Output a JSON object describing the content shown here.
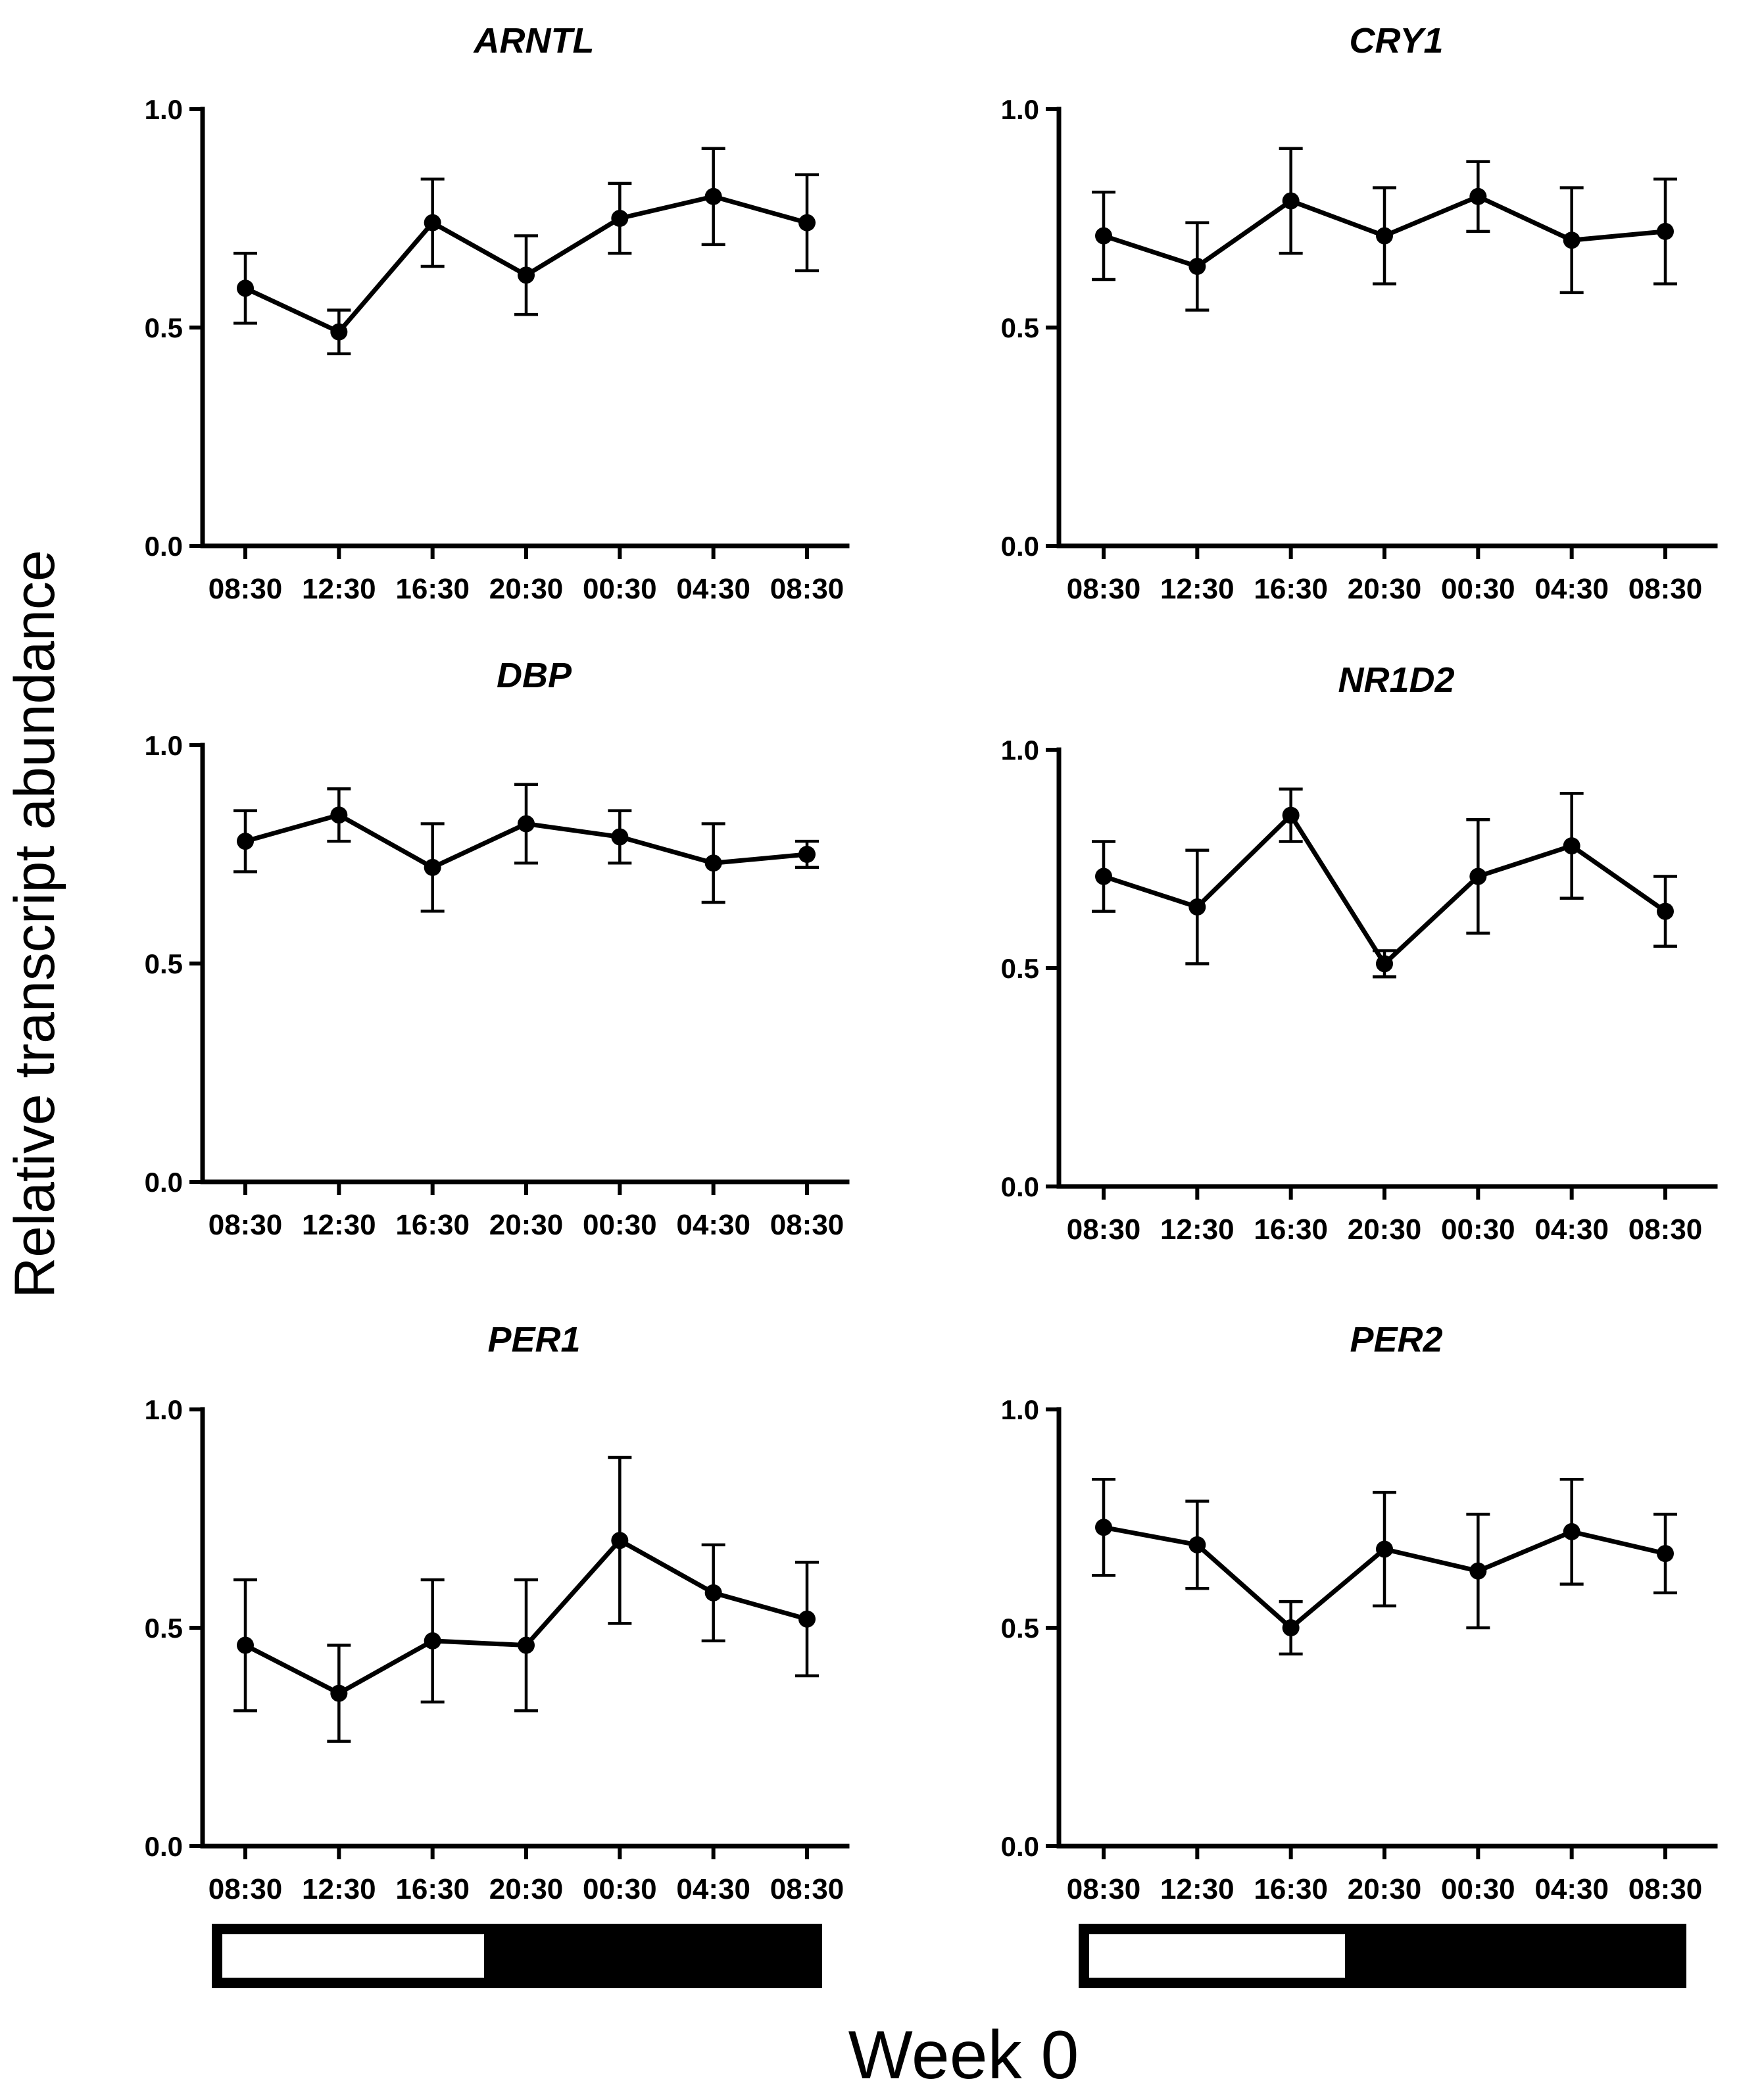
{
  "figure": {
    "ylabel": "Relative transcript abundance",
    "xlabel": "Week 0",
    "line_color": "#000000",
    "light_bar_color": "#ffffff",
    "dark_bar_color": "#000000"
  },
  "chart_data": [
    {
      "type": "line",
      "title": "ARNTL",
      "categories": [
        "08:30",
        "12:30",
        "16:30",
        "20:30",
        "00:30",
        "04:30",
        "08:30"
      ],
      "values": [
        0.59,
        0.49,
        0.74,
        0.62,
        0.75,
        0.8,
        0.74
      ],
      "errors": [
        0.08,
        0.05,
        0.1,
        0.09,
        0.08,
        0.11,
        0.11
      ],
      "ylim": [
        0,
        1.0
      ],
      "yticks": [
        "0.0",
        "0.5",
        "1.0"
      ],
      "ytick_values": [
        0,
        0.5,
        1.0
      ],
      "light_dark_bar": {
        "light": "08:30–20:30",
        "dark": "20:30–08:30"
      }
    },
    {
      "type": "line",
      "title": "CRY1",
      "categories": [
        "08:30",
        "12:30",
        "16:30",
        "20:30",
        "00:30",
        "04:30",
        "08:30"
      ],
      "values": [
        0.71,
        0.64,
        0.79,
        0.71,
        0.8,
        0.7,
        0.72
      ],
      "errors": [
        0.1,
        0.1,
        0.12,
        0.11,
        0.08,
        0.12,
        0.12
      ],
      "ylim": [
        0,
        1.0
      ],
      "yticks": [
        "0.0",
        "0.5",
        "1.0"
      ],
      "ytick_values": [
        0,
        0.5,
        1.0
      ]
    },
    {
      "type": "line",
      "title": "DBP",
      "categories": [
        "08:30",
        "12:30",
        "16:30",
        "20:30",
        "00:30",
        "04:30",
        "08:30"
      ],
      "values": [
        0.78,
        0.84,
        0.72,
        0.82,
        0.79,
        0.73,
        0.75
      ],
      "errors": [
        0.07,
        0.06,
        0.1,
        0.09,
        0.06,
        0.09,
        0.03
      ],
      "ylim": [
        0,
        1.0
      ],
      "yticks": [
        "0.0",
        "0.5",
        "1.0"
      ],
      "ytick_values": [
        0,
        0.5,
        1.0
      ]
    },
    {
      "type": "line",
      "title": "NR1D2",
      "categories": [
        "08:30",
        "12:30",
        "16:30",
        "20:30",
        "00:30",
        "04:30",
        "08:30"
      ],
      "values": [
        0.71,
        0.64,
        0.85,
        0.51,
        0.71,
        0.78,
        0.63
      ],
      "errors": [
        0.08,
        0.13,
        0.06,
        0.03,
        0.13,
        0.12,
        0.08
      ],
      "ylim": [
        0,
        1.0
      ],
      "yticks": [
        "0.0",
        "0.5",
        "1.0"
      ],
      "ytick_values": [
        0,
        0.5,
        1.0
      ]
    },
    {
      "type": "line",
      "title": "PER1",
      "categories": [
        "08:30",
        "12:30",
        "16:30",
        "20:30",
        "00:30",
        "04:30",
        "08:30"
      ],
      "values": [
        0.46,
        0.35,
        0.47,
        0.46,
        0.7,
        0.58,
        0.52
      ],
      "errors": [
        0.15,
        0.11,
        0.14,
        0.15,
        0.19,
        0.11,
        0.13
      ],
      "ylim": [
        0,
        1.0
      ],
      "yticks": [
        "0.0",
        "0.5",
        "1.0"
      ],
      "ytick_values": [
        0,
        0.5,
        1.0
      ],
      "light_dark_bar": {
        "light": "08:30–20:30",
        "dark": "20:30–08:30"
      }
    },
    {
      "type": "line",
      "title": "PER2",
      "categories": [
        "08:30",
        "12:30",
        "16:30",
        "20:30",
        "00:30",
        "04:30",
        "08:30"
      ],
      "values": [
        0.73,
        0.69,
        0.5,
        0.68,
        0.63,
        0.72,
        0.67
      ],
      "errors": [
        0.11,
        0.1,
        0.06,
        0.13,
        0.13,
        0.12,
        0.09
      ],
      "ylim": [
        0,
        1.0
      ],
      "yticks": [
        "0.0",
        "0.5",
        "1.0"
      ],
      "ytick_values": [
        0,
        0.5,
        1.0
      ],
      "light_dark_bar": {
        "light": "08:30–20:30",
        "dark": "20:30–08:30"
      }
    }
  ]
}
